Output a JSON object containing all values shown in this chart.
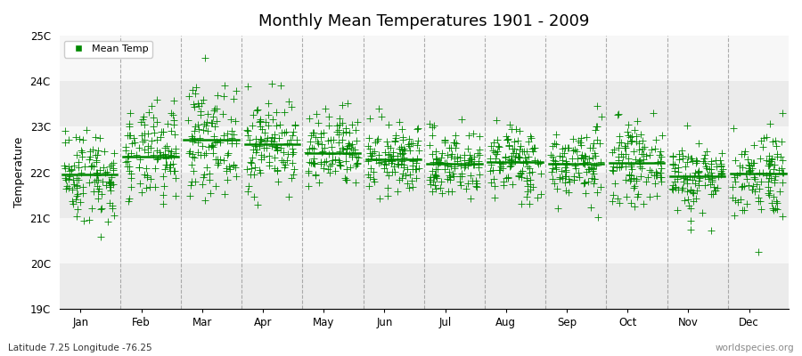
{
  "title": "Monthly Mean Temperatures 1901 - 2009",
  "ylabel": "Temperature",
  "subtitle": "Latitude 7.25 Longitude -76.25",
  "watermark": "worldspecies.org",
  "ylim": [
    19,
    25
  ],
  "ytick_labels": [
    "19C",
    "20C",
    "21C",
    "22C",
    "23C",
    "24C",
    "25C"
  ],
  "months": [
    "Jan",
    "Feb",
    "Mar",
    "Apr",
    "May",
    "Jun",
    "Jul",
    "Aug",
    "Sep",
    "Oct",
    "Nov",
    "Dec"
  ],
  "n_years": 109,
  "month_means": [
    21.95,
    22.35,
    22.72,
    22.62,
    22.42,
    22.28,
    22.18,
    22.22,
    22.18,
    22.2,
    21.92,
    21.98
  ],
  "month_stds": [
    0.52,
    0.52,
    0.58,
    0.5,
    0.43,
    0.38,
    0.38,
    0.4,
    0.4,
    0.4,
    0.4,
    0.5
  ],
  "scatter_color": "#008800",
  "mean_line_color": "#008800",
  "band_colors_odd": "#ebebeb",
  "band_colors_even": "#f7f7f7",
  "legend_label": "Mean Temp",
  "seed": 42,
  "marker_size": 3.0,
  "background_color": "#ffffff"
}
